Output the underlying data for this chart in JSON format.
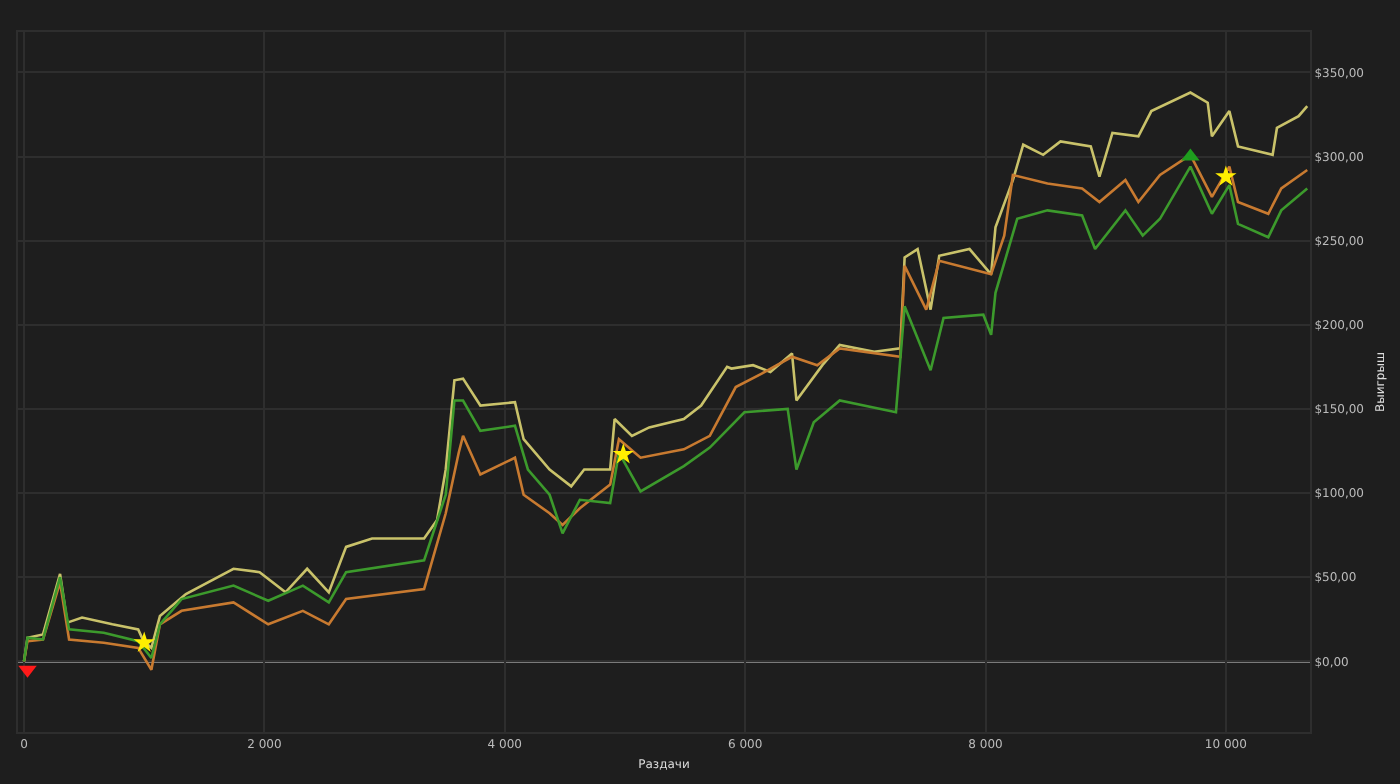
{
  "chart_data": {
    "type": "line",
    "xlabel": "Раздачи",
    "ylabel": "Выигрыш",
    "xlim": [
      -50,
      10700
    ],
    "ylim": [
      -42,
      374
    ],
    "xticks": [
      0,
      {
        "value": 2000,
        "label": "2 000"
      },
      {
        "value": 4000,
        "label": "4 000"
      },
      {
        "value": 6000,
        "label": "6 000"
      },
      {
        "value": 8000,
        "label": "8 000"
      },
      {
        "value": 10000,
        "label": "10 000"
      }
    ],
    "yticks": [
      {
        "value": 0,
        "label": "$0,00"
      },
      {
        "value": 50,
        "label": "$50,00"
      },
      {
        "value": 100,
        "label": "$100,00"
      },
      {
        "value": 150,
        "label": "$150,00"
      },
      {
        "value": 200,
        "label": "$200,00"
      },
      {
        "value": 250,
        "label": "$250,00"
      },
      {
        "value": 300,
        "label": "$300,00"
      },
      {
        "value": 350,
        "label": "$350,00"
      }
    ],
    "grid": true,
    "marker": "none",
    "line_style": "solid",
    "ref_lines": [
      {
        "axis": "y",
        "value": 0,
        "color": "#d8d8d8"
      }
    ],
    "series": [
      {
        "color": "#c9c26a",
        "x": [
          0,
          29,
          158,
          300,
          360,
          483,
          735,
          950,
          994,
          1060,
          1131,
          1347,
          1743,
          1960,
          2176,
          2356,
          2536,
          2680,
          2896,
          3329,
          3437,
          3509,
          3581,
          3653,
          3797,
          4085,
          4157,
          4373,
          4553,
          4661,
          4877,
          4914,
          5058,
          5202,
          5490,
          5634,
          5850,
          5886,
          6066,
          6210,
          6390,
          6427,
          6643,
          6787,
          7075,
          7291,
          7327,
          7435,
          7543,
          7615,
          7867,
          8047,
          8083,
          8228,
          8314,
          8480,
          8624,
          8876,
          8948,
          9056,
          9272,
          9380,
          9705,
          9849,
          9884,
          10029,
          10101,
          10389,
          10425,
          10605,
          10677
        ],
        "values": [
          0,
          14,
          16,
          52,
          23,
          26,
          22,
          19,
          12,
          8,
          27,
          40,
          55,
          53,
          41,
          55,
          41,
          68,
          73,
          73,
          84,
          114,
          167,
          168,
          152,
          154,
          132,
          114,
          104,
          114,
          114,
          144,
          134,
          139,
          144,
          152,
          175,
          174,
          176,
          172,
          183,
          155,
          176,
          188,
          184,
          186,
          240,
          245,
          209,
          241,
          245,
          230,
          258,
          286,
          307,
          301,
          309,
          306,
          288,
          314,
          312,
          327,
          338,
          332,
          312,
          327,
          306,
          301,
          317,
          324,
          330
        ]
      },
      {
        "color": "#c87a30",
        "x": [
          0,
          29,
          158,
          300,
          375,
          663,
          950,
          1060,
          1131,
          1311,
          1743,
          2032,
          2320,
          2536,
          2680,
          3329,
          3509,
          3617,
          3653,
          3797,
          4085,
          4157,
          4373,
          4481,
          4625,
          4877,
          4950,
          5130,
          5490,
          5706,
          5922,
          6138,
          6390,
          6600,
          6787,
          7291,
          7327,
          7507,
          7615,
          8047,
          8156,
          8228,
          8516,
          8804,
          8948,
          9164,
          9272,
          9452,
          9705,
          9884,
          10029,
          10101,
          10353,
          10461,
          10677
        ],
        "values": [
          0,
          12,
          13,
          47,
          13,
          11,
          8,
          -5,
          22,
          30,
          35,
          22,
          30,
          22,
          37,
          43,
          88,
          124,
          134,
          111,
          121,
          99,
          88,
          81,
          91,
          105,
          132,
          121,
          126,
          134,
          163,
          171,
          181,
          176,
          186,
          181,
          235,
          209,
          238,
          230,
          253,
          289,
          284,
          281,
          273,
          286,
          273,
          289,
          301,
          276,
          294,
          273,
          266,
          281,
          292
        ]
      },
      {
        "color": "#3c9a2c",
        "x": [
          0,
          29,
          158,
          300,
          375,
          663,
          950,
          1060,
          1131,
          1311,
          1743,
          2032,
          2320,
          2536,
          2680,
          3329,
          3509,
          3581,
          3653,
          3797,
          4085,
          4193,
          4373,
          4481,
          4625,
          4877,
          4950,
          5130,
          5490,
          5706,
          5994,
          6354,
          6427,
          6571,
          6787,
          7255,
          7327,
          7543,
          7651,
          7982,
          8047,
          8083,
          8264,
          8516,
          8804,
          8912,
          9164,
          9308,
          9452,
          9705,
          9884,
          10029,
          10101,
          10353,
          10461,
          10677
        ],
        "values": [
          0,
          14,
          13,
          50,
          19,
          17,
          12,
          2,
          22,
          37,
          45,
          36,
          45,
          35,
          53,
          60,
          99,
          155,
          155,
          137,
          140,
          114,
          99,
          76,
          96,
          94,
          124,
          101,
          116,
          127,
          148,
          150,
          114,
          142,
          155,
          148,
          211,
          173,
          204,
          206,
          194,
          219,
          263,
          268,
          265,
          245,
          268,
          253,
          263,
          294,
          266,
          283,
          260,
          252,
          268,
          281
        ]
      },
      {
        "type": "scatter",
        "marker": "triangle-down",
        "color": "#ff1a1a",
        "x": [
          29
        ],
        "values": [
          -5
        ]
      },
      {
        "type": "scatter",
        "marker": "star",
        "color": "#ffee00",
        "x": [
          1000,
          4986,
          10000
        ],
        "values": [
          11,
          123,
          288
        ]
      },
      {
        "type": "scatter",
        "marker": "triangle",
        "color": "#1e9e1e",
        "x": [
          9705
        ],
        "values": [
          300
        ]
      }
    ]
  }
}
